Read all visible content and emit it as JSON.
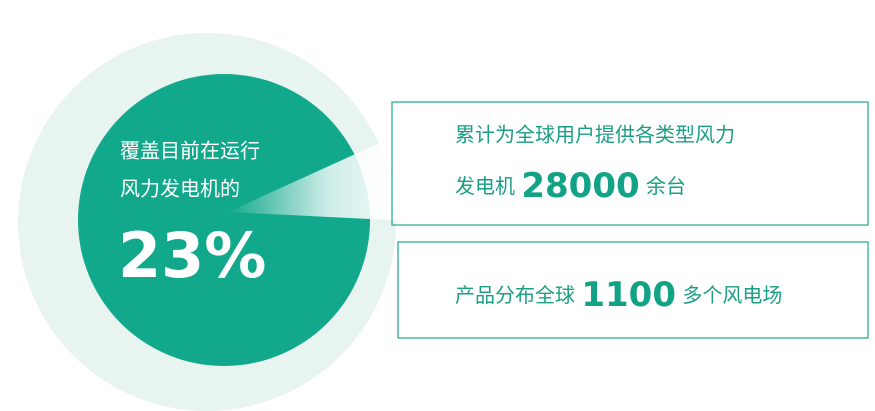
{
  "circle": {
    "line1": "覆盖目前在运行",
    "line2": "风力发电机的",
    "percent": "23%"
  },
  "stats": [
    {
      "line1": "累计为全球用户提供各类型风力",
      "prefix": "发电机",
      "number": "28000",
      "suffix": "余台"
    },
    {
      "prefix": "产品分布全球",
      "number": "1100",
      "suffix": "多个风电场"
    }
  ]
}
